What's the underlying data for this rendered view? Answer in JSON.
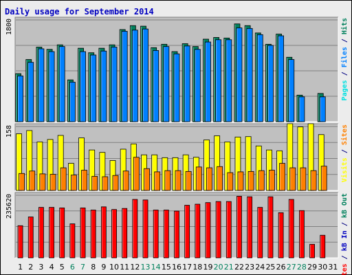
{
  "chart_data": [
    {
      "type": "bar",
      "title": "Daily usage for September 2014",
      "categories": [
        "1",
        "2",
        "3",
        "4",
        "5",
        "6",
        "7",
        "8",
        "9",
        "10",
        "11",
        "12",
        "13",
        "14",
        "15",
        "16",
        "17",
        "18",
        "19",
        "20",
        "21",
        "22",
        "23",
        "24",
        "25",
        "26",
        "27",
        "28",
        "29",
        "30",
        "31"
      ],
      "weekend_days": [
        "6",
        "7",
        "13",
        "14",
        "20",
        "21",
        "27",
        "28"
      ],
      "panels": [
        {
          "ymax_label": "1800",
          "ymax": 1800,
          "side_label": [
            "Pages",
            " / ",
            "Files",
            " / ",
            "Hits"
          ],
          "side_colors": [
            "#00e0e0",
            "#000080",
            "#0080ff",
            "#000080",
            "#00805c"
          ],
          "series": [
            {
              "name": "Hits",
              "color": "#00805c",
              "values": [
                850,
                1100,
                1320,
                1280,
                1360,
                740,
                1300,
                1220,
                1300,
                1360,
                1630,
                1700,
                1690,
                1310,
                1370,
                1240,
                1380,
                1330,
                1460,
                1490,
                1480,
                1730,
                1700,
                1570,
                1370,
                1550,
                1140,
                470,
                0,
                500,
                0
              ]
            },
            {
              "name": "Files",
              "color": "#0080ff",
              "values": [
                810,
                1050,
                1290,
                1240,
                1330,
                700,
                1240,
                1180,
                1250,
                1320,
                1600,
                1620,
                1640,
                1260,
                1330,
                1200,
                1340,
                1280,
                1410,
                1450,
                1450,
                1660,
                1650,
                1540,
                1350,
                1520,
                1100,
                440,
                0,
                440,
                0
              ]
            },
            {
              "name": "Pages",
              "color": "#00c0ff",
              "values": [
                0,
                0,
                0,
                0,
                0,
                0,
                0,
                0,
                0,
                0,
                0,
                0,
                0,
                0,
                0,
                0,
                0,
                0,
                0,
                0,
                0,
                0,
                0,
                0,
                0,
                0,
                0,
                0,
                0,
                0,
                0
              ]
            }
          ]
        },
        {
          "ymax_label": "158",
          "ymax": 158,
          "side_label": [
            "Visits",
            " / ",
            "Sites"
          ],
          "side_colors": [
            "#ffff00",
            "#000080",
            "#ff8000"
          ],
          "series": [
            {
              "name": "Visits",
              "color": "#ffff00",
              "values": [
                140,
                148,
                120,
                126,
                136,
                67,
                130,
                100,
                94,
                74,
                102,
                115,
                88,
                88,
                81,
                81,
                88,
                82,
                125,
                135,
                120,
                132,
                133,
                110,
                100,
                98,
                165,
                157,
                165,
                138,
                0
              ]
            },
            {
              "name": "Sites",
              "color": "#ff8000",
              "values": [
                42,
                48,
                41,
                40,
                56,
                38,
                50,
                35,
                34,
                37,
                48,
                82,
                54,
                46,
                49,
                49,
                47,
                58,
                56,
                59,
                44,
                46,
                47,
                49,
                50,
                67,
                56,
                56,
                49,
                60,
                0
              ]
            }
          ]
        },
        {
          "ymax_label": "235620",
          "ymax": 235620,
          "side_label": [
            "KBytes",
            " / ",
            "kB In",
            " / ",
            "kB Out"
          ],
          "side_colors": [
            "#ff0000",
            "#000080",
            "#0000c0",
            "#000080",
            "#00805c"
          ],
          "series": [
            {
              "name": "KBytes",
              "color": "#ff0000",
              "values": [
                121000,
                154000,
                190000,
                190000,
                188000,
                128000,
                188000,
                180000,
                192000,
                182000,
                186000,
                220000,
                218000,
                180000,
                180000,
                176000,
                198000,
                202000,
                208000,
                212000,
                212000,
                232000,
                230000,
                190000,
                230000,
                170000,
                220000,
                178000,
                51000,
                85000,
                0
              ]
            }
          ]
        }
      ]
    }
  ]
}
